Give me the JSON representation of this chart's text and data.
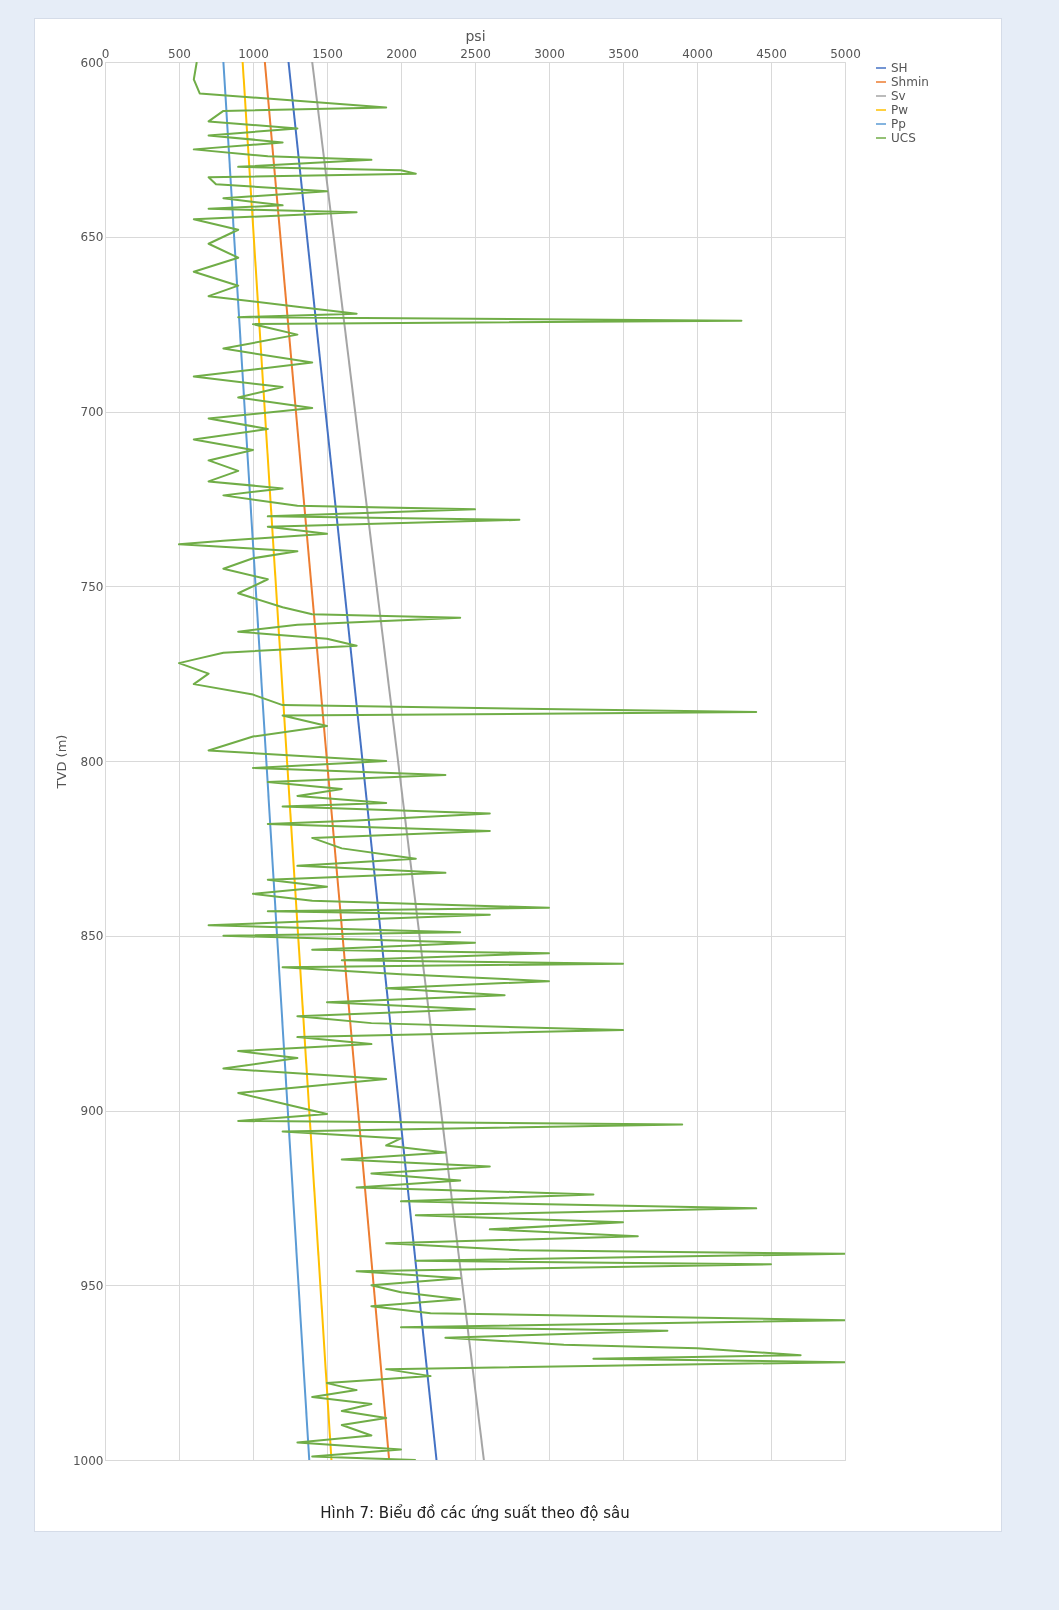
{
  "chart_data": {
    "type": "line",
    "title": "Hình 7: Biểu đồ các ứng suất theo độ sâu",
    "xlabel": "psi",
    "ylabel": "TVD (m)",
    "xlim": [
      0,
      5000
    ],
    "xticks": [
      0,
      500,
      1000,
      1500,
      2000,
      2500,
      3000,
      3500,
      4000,
      4500,
      5000
    ],
    "ylim": [
      1000,
      600
    ],
    "yticks": [
      600,
      650,
      700,
      750,
      800,
      850,
      900,
      950,
      1000
    ],
    "grid": true,
    "legend": "right",
    "series": [
      {
        "name": "SH",
        "color": "#4472c4",
        "x": [
          1240,
          2240
        ],
        "values": [
          600,
          1000
        ]
      },
      {
        "name": "Shmin",
        "color": "#ed7d31",
        "x": [
          1080,
          1920
        ],
        "values": [
          600,
          1000
        ]
      },
      {
        "name": "Sv",
        "color": "#a5a5a5",
        "x": [
          1400,
          2560
        ],
        "values": [
          600,
          1000
        ]
      },
      {
        "name": "Pw",
        "color": "#ffc000",
        "x": [
          930,
          1530
        ],
        "values": [
          600,
          1000
        ]
      },
      {
        "name": "Pp",
        "color": "#5b9bd5",
        "x": [
          800,
          1380
        ],
        "values": [
          600,
          1000
        ]
      },
      {
        "name": "UCS",
        "color": "#70ad47",
        "x": [
          620,
          600,
          640,
          1900,
          800,
          700,
          1300,
          700,
          1200,
          600,
          1100,
          1800,
          900,
          2000,
          2100,
          700,
          750,
          1500,
          800,
          1200,
          700,
          1700,
          600,
          900,
          700,
          900,
          600,
          900,
          700,
          1300,
          1700,
          900,
          4300,
          1000,
          1300,
          800,
          1400,
          600,
          1200,
          900,
          1400,
          700,
          1100,
          600,
          1000,
          700,
          900,
          700,
          1200,
          800,
          1300,
          2500,
          1100,
          2800,
          1100,
          1500,
          800,
          500,
          1300,
          1000,
          800,
          1100,
          900,
          1200,
          1400,
          2400,
          1300,
          900,
          1500,
          1700,
          800,
          600,
          500,
          700,
          600,
          1000,
          1200,
          4400,
          1200,
          1500,
          1000,
          700,
          1900,
          1000,
          2300,
          1100,
          1600,
          1300,
          1900,
          1200,
          2600,
          1700,
          1100,
          2600,
          1400,
          1600,
          2100,
          1300,
          2300,
          1100,
          1500,
          1000,
          1400,
          3000,
          1100,
          2600,
          1300,
          700,
          2400,
          800,
          2500,
          1400,
          3000,
          1600,
          3500,
          1200,
          2000,
          3000,
          1900,
          2700,
          1500,
          2500,
          1300,
          1800,
          3500,
          1300,
          1800,
          900,
          1300,
          800,
          1900,
          1400,
          900,
          1200,
          1500,
          900,
          3900,
          1200,
          2000,
          1900,
          2300,
          1600,
          2600,
          1800,
          2400,
          1700,
          3300,
          2000,
          4400,
          2100,
          3500,
          2600,
          3600,
          1900,
          2800,
          5000,
          2100,
          4500,
          1700,
          2400,
          1800,
          2000,
          2400,
          1800,
          2200,
          5000,
          2000,
          3800,
          2300,
          3100,
          4000,
          4700,
          3300,
          5000,
          1900,
          2200,
          1500,
          1700,
          1400,
          1800,
          1600,
          1900,
          1600,
          1800,
          1300,
          2000,
          1400,
          2100
        ],
        "values": [
          600,
          605,
          609,
          613,
          614,
          617,
          619,
          621,
          623,
          625,
          627,
          628,
          630,
          631,
          632,
          633,
          635,
          637,
          639,
          641,
          642,
          643,
          645,
          648,
          652,
          656,
          660,
          664,
          667,
          670,
          672,
          673,
          674,
          675,
          678,
          682,
          686,
          690,
          693,
          696,
          699,
          702,
          705,
          708,
          711,
          714,
          717,
          720,
          722,
          724,
          727,
          728,
          730,
          731,
          733,
          735,
          737,
          738,
          740,
          742,
          745,
          748,
          752,
          756,
          758,
          759,
          761,
          763,
          765,
          767,
          769,
          771,
          772,
          775,
          778,
          781,
          784,
          786,
          787,
          790,
          793,
          797,
          800,
          802,
          804,
          806,
          808,
          810,
          812,
          813,
          815,
          817,
          818,
          820,
          822,
          825,
          828,
          830,
          832,
          834,
          836,
          838,
          840,
          842,
          843,
          844,
          846,
          847,
          849,
          850,
          852,
          854,
          855,
          857,
          858,
          859,
          861,
          863,
          865,
          867,
          869,
          871,
          873,
          875,
          877,
          879,
          881,
          883,
          885,
          888,
          891,
          893,
          895,
          898,
          901,
          903,
          904,
          906,
          908,
          910,
          912,
          914,
          916,
          918,
          920,
          922,
          924,
          926,
          928,
          930,
          932,
          934,
          936,
          938,
          940,
          941,
          943,
          944,
          946,
          948,
          950,
          952,
          954,
          956,
          958,
          960,
          962,
          963,
          965,
          967,
          968,
          970,
          971,
          972,
          974,
          976,
          978,
          980,
          982,
          984,
          986,
          988,
          990,
          993,
          995,
          997,
          999,
          1000
        ]
      }
    ]
  }
}
